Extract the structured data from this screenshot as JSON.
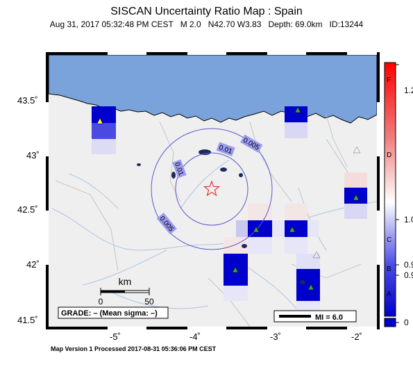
{
  "header": {
    "title": "SISCAN Uncertainty Ratio Map : Spain",
    "date": "Aug 31, 2017 05:32:48 PM CEST",
    "magnitude": "M 2.0",
    "location": "N42.70 W3.83",
    "depth": "Depth: 69.0km",
    "id": "ID:13244"
  },
  "map": {
    "lat_labels": [
      "43.5˚",
      "43˚",
      "42.5˚",
      "42˚",
      "41.5˚"
    ],
    "lon_labels": [
      "-5˚",
      "-4˚",
      "-3˚",
      "-2˚"
    ],
    "contour_labels": [
      "0.01",
      "0.005",
      "0.01",
      "0.005"
    ],
    "scale_unit": "km",
    "scale_ticks": [
      "0",
      "50"
    ],
    "grade_text": "GRADE: – (Mean sigma: –)",
    "mi_text": "MI = 6.0",
    "colors": {
      "sea": "#7aa3dc",
      "land": "#efefef",
      "epicenter": "#e03a3a",
      "cell": "#0000cc"
    }
  },
  "colorbar": {
    "letters": [
      "F",
      "D",
      "C",
      "B",
      "A"
    ],
    "labels": [
      "1.2",
      "1.0",
      "0.9",
      "0.9",
      "0"
    ]
  },
  "footer": "Map Version 1 Processed 2017-08-31 05:36:06 PM CEST"
}
